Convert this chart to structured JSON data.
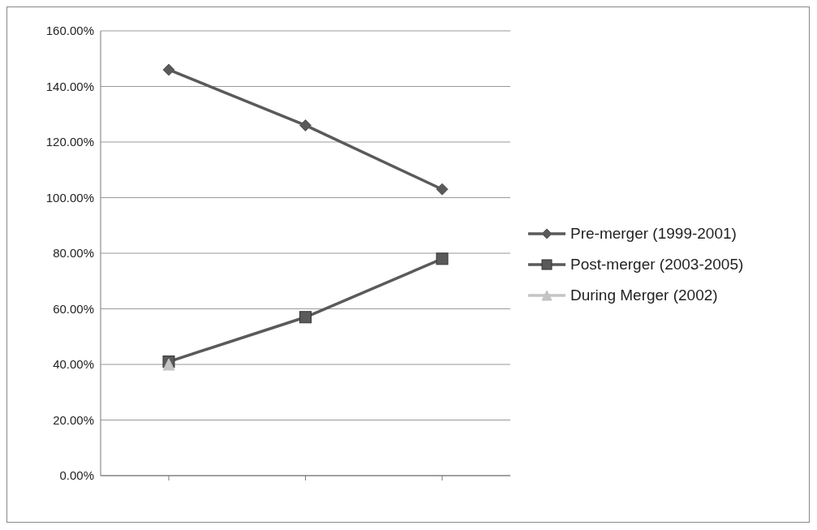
{
  "chart_data": {
    "type": "line",
    "categories": [
      null,
      null,
      null
    ],
    "series": [
      {
        "name": "Pre-merger (1999-2001)",
        "color": "#5a5a5a",
        "marker": "diamond",
        "values": [
          146,
          126,
          103
        ]
      },
      {
        "name": "Post-merger (2003-2005)",
        "color": "#5a5a5a",
        "marker": "square",
        "values": [
          41,
          57,
          78
        ]
      },
      {
        "name": "During Merger (2002)",
        "color": "#c4c4c4",
        "marker": "triangle",
        "values": [
          40,
          null,
          null
        ]
      }
    ],
    "ylim": [
      0,
      160
    ],
    "yticks": [
      {
        "value": 0,
        "label": "0.00%"
      },
      {
        "value": 20,
        "label": "20.00%"
      },
      {
        "value": 40,
        "label": "40.00%"
      },
      {
        "value": 60,
        "label": "60.00%"
      },
      {
        "value": 80,
        "label": "80.00%"
      },
      {
        "value": 100,
        "label": "100.00%"
      },
      {
        "value": 120,
        "label": "120.00%"
      },
      {
        "value": 140,
        "label": "140.00%"
      },
      {
        "value": 160,
        "label": "160.00%"
      }
    ],
    "grid": "y",
    "legend": "right"
  }
}
